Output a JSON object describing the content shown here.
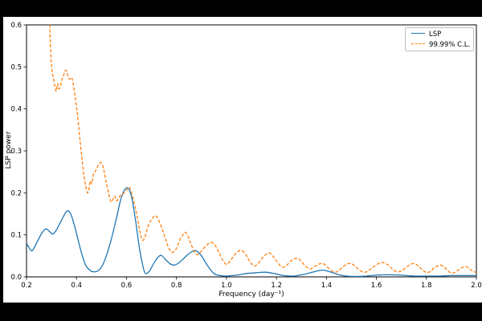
{
  "canvas": {
    "letterbox_color": "#000000",
    "figure_background": "#ffffff"
  },
  "chart_data": {
    "type": "line",
    "title": "",
    "xlabel": "Frequency (day⁻¹)",
    "ylabel": "LSP power",
    "xlim": [
      0.2,
      2.0
    ],
    "ylim": [
      0.0,
      0.6
    ],
    "xticks": [
      0.2,
      0.4,
      0.6,
      0.8,
      1.0,
      1.2,
      1.4,
      1.6,
      1.8,
      2.0
    ],
    "yticks": [
      0.0,
      0.1,
      0.2,
      0.3,
      0.4,
      0.5,
      0.6
    ],
    "grid": false,
    "legend": {
      "position": "upper right",
      "entries": [
        {
          "label": "LSP",
          "color": "#1f77b4",
          "line_style": "solid"
        },
        {
          "label": "99.99% C.L.",
          "color": "#ff7f0e",
          "line_style": "dashed"
        }
      ]
    },
    "series": [
      {
        "id": "lsp",
        "name": "LSP",
        "color": "#1f77b4",
        "line_style": "solid",
        "points": [
          [
            0.2,
            0.08
          ],
          [
            0.21,
            0.07
          ],
          [
            0.222,
            0.062
          ],
          [
            0.24,
            0.08
          ],
          [
            0.26,
            0.103
          ],
          [
            0.278,
            0.114
          ],
          [
            0.292,
            0.108
          ],
          [
            0.305,
            0.102
          ],
          [
            0.32,
            0.112
          ],
          [
            0.34,
            0.135
          ],
          [
            0.362,
            0.157
          ],
          [
            0.378,
            0.148
          ],
          [
            0.395,
            0.115
          ],
          [
            0.415,
            0.068
          ],
          [
            0.435,
            0.03
          ],
          [
            0.455,
            0.015
          ],
          [
            0.472,
            0.012
          ],
          [
            0.49,
            0.016
          ],
          [
            0.51,
            0.035
          ],
          [
            0.535,
            0.08
          ],
          [
            0.56,
            0.14
          ],
          [
            0.58,
            0.19
          ],
          [
            0.6,
            0.212
          ],
          [
            0.618,
            0.196
          ],
          [
            0.635,
            0.14
          ],
          [
            0.652,
            0.068
          ],
          [
            0.668,
            0.02
          ],
          [
            0.678,
            0.008
          ],
          [
            0.692,
            0.014
          ],
          [
            0.71,
            0.033
          ],
          [
            0.728,
            0.048
          ],
          [
            0.74,
            0.051
          ],
          [
            0.755,
            0.042
          ],
          [
            0.775,
            0.031
          ],
          [
            0.793,
            0.028
          ],
          [
            0.815,
            0.036
          ],
          [
            0.84,
            0.05
          ],
          [
            0.862,
            0.06
          ],
          [
            0.88,
            0.062
          ],
          [
            0.9,
            0.05
          ],
          [
            0.925,
            0.026
          ],
          [
            0.95,
            0.008
          ],
          [
            0.975,
            0.003
          ],
          [
            1.0,
            0.002
          ],
          [
            1.04,
            0.004
          ],
          [
            1.08,
            0.008
          ],
          [
            1.12,
            0.01
          ],
          [
            1.155,
            0.011
          ],
          [
            1.19,
            0.008
          ],
          [
            1.23,
            0.003
          ],
          [
            1.27,
            0.002
          ],
          [
            1.31,
            0.006
          ],
          [
            1.35,
            0.012
          ],
          [
            1.385,
            0.016
          ],
          [
            1.42,
            0.011
          ],
          [
            1.45,
            0.005
          ],
          [
            1.48,
            0.002
          ],
          [
            1.52,
            0.001
          ],
          [
            1.56,
            0.002
          ],
          [
            1.6,
            0.004
          ],
          [
            1.65,
            0.005
          ],
          [
            1.7,
            0.004
          ],
          [
            1.75,
            0.002
          ],
          [
            1.8,
            0.002
          ],
          [
            1.85,
            0.002
          ],
          [
            1.9,
            0.003
          ],
          [
            1.95,
            0.003
          ],
          [
            2.0,
            0.003
          ]
        ]
      },
      {
        "id": "confidence",
        "name": "99.99% C.L.",
        "color": "#ff7f0e",
        "line_style": "dashed",
        "points": [
          [
            0.288,
            0.72
          ],
          [
            0.293,
            0.6
          ],
          [
            0.298,
            0.52
          ],
          [
            0.303,
            0.487
          ],
          [
            0.307,
            0.476
          ],
          [
            0.313,
            0.455
          ],
          [
            0.319,
            0.442
          ],
          [
            0.324,
            0.46
          ],
          [
            0.329,
            0.448
          ],
          [
            0.335,
            0.452
          ],
          [
            0.342,
            0.47
          ],
          [
            0.35,
            0.483
          ],
          [
            0.358,
            0.492
          ],
          [
            0.366,
            0.478
          ],
          [
            0.372,
            0.47
          ],
          [
            0.377,
            0.474
          ],
          [
            0.383,
            0.471
          ],
          [
            0.392,
            0.44
          ],
          [
            0.403,
            0.39
          ],
          [
            0.415,
            0.32
          ],
          [
            0.428,
            0.25
          ],
          [
            0.44,
            0.207
          ],
          [
            0.447,
            0.202
          ],
          [
            0.455,
            0.228
          ],
          [
            0.461,
            0.222
          ],
          [
            0.468,
            0.244
          ],
          [
            0.476,
            0.252
          ],
          [
            0.484,
            0.262
          ],
          [
            0.492,
            0.27
          ],
          [
            0.499,
            0.272
          ],
          [
            0.508,
            0.258
          ],
          [
            0.52,
            0.222
          ],
          [
            0.532,
            0.19
          ],
          [
            0.54,
            0.178
          ],
          [
            0.548,
            0.188
          ],
          [
            0.554,
            0.192
          ],
          [
            0.56,
            0.181
          ],
          [
            0.568,
            0.186
          ],
          [
            0.578,
            0.196
          ],
          [
            0.588,
            0.198
          ],
          [
            0.597,
            0.205
          ],
          [
            0.605,
            0.21
          ],
          [
            0.613,
            0.213
          ],
          [
            0.62,
            0.2
          ],
          [
            0.63,
            0.178
          ],
          [
            0.642,
            0.145
          ],
          [
            0.655,
            0.105
          ],
          [
            0.665,
            0.087
          ],
          [
            0.675,
            0.098
          ],
          [
            0.69,
            0.126
          ],
          [
            0.705,
            0.14
          ],
          [
            0.716,
            0.146
          ],
          [
            0.728,
            0.136
          ],
          [
            0.742,
            0.115
          ],
          [
            0.755,
            0.092
          ],
          [
            0.77,
            0.068
          ],
          [
            0.785,
            0.058
          ],
          [
            0.8,
            0.068
          ],
          [
            0.815,
            0.09
          ],
          [
            0.828,
            0.102
          ],
          [
            0.836,
            0.106
          ],
          [
            0.845,
            0.098
          ],
          [
            0.858,
            0.078
          ],
          [
            0.872,
            0.06
          ],
          [
            0.885,
            0.053
          ],
          [
            0.898,
            0.06
          ],
          [
            0.915,
            0.072
          ],
          [
            0.93,
            0.08
          ],
          [
            0.942,
            0.082
          ],
          [
            0.955,
            0.075
          ],
          [
            0.97,
            0.058
          ],
          [
            0.985,
            0.04
          ],
          [
            1.0,
            0.03
          ],
          [
            1.015,
            0.038
          ],
          [
            1.032,
            0.052
          ],
          [
            1.048,
            0.061
          ],
          [
            1.06,
            0.063
          ],
          [
            1.075,
            0.055
          ],
          [
            1.09,
            0.04
          ],
          [
            1.105,
            0.028
          ],
          [
            1.115,
            0.026
          ],
          [
            1.13,
            0.034
          ],
          [
            1.148,
            0.048
          ],
          [
            1.162,
            0.055
          ],
          [
            1.172,
            0.057
          ],
          [
            1.185,
            0.05
          ],
          [
            1.2,
            0.038
          ],
          [
            1.215,
            0.027
          ],
          [
            1.228,
            0.023
          ],
          [
            1.242,
            0.028
          ],
          [
            1.258,
            0.038
          ],
          [
            1.272,
            0.043
          ],
          [
            1.285,
            0.044
          ],
          [
            1.298,
            0.038
          ],
          [
            1.312,
            0.028
          ],
          [
            1.325,
            0.021
          ],
          [
            1.336,
            0.019
          ],
          [
            1.35,
            0.024
          ],
          [
            1.365,
            0.029
          ],
          [
            1.38,
            0.032
          ],
          [
            1.392,
            0.03
          ],
          [
            1.405,
            0.023
          ],
          [
            1.42,
            0.015
          ],
          [
            1.435,
            0.011
          ],
          [
            1.448,
            0.014
          ],
          [
            1.462,
            0.022
          ],
          [
            1.478,
            0.029
          ],
          [
            1.492,
            0.032
          ],
          [
            1.505,
            0.03
          ],
          [
            1.52,
            0.023
          ],
          [
            1.535,
            0.015
          ],
          [
            1.55,
            0.011
          ],
          [
            1.565,
            0.013
          ],
          [
            1.58,
            0.02
          ],
          [
            1.598,
            0.028
          ],
          [
            1.615,
            0.033
          ],
          [
            1.63,
            0.034
          ],
          [
            1.645,
            0.029
          ],
          [
            1.66,
            0.021
          ],
          [
            1.675,
            0.014
          ],
          [
            1.69,
            0.012
          ],
          [
            1.705,
            0.016
          ],
          [
            1.722,
            0.024
          ],
          [
            1.738,
            0.03
          ],
          [
            1.75,
            0.032
          ],
          [
            1.763,
            0.028
          ],
          [
            1.778,
            0.02
          ],
          [
            1.792,
            0.013
          ],
          [
            1.805,
            0.01
          ],
          [
            1.818,
            0.014
          ],
          [
            1.832,
            0.022
          ],
          [
            1.845,
            0.026
          ],
          [
            1.857,
            0.028
          ],
          [
            1.87,
            0.024
          ],
          [
            1.885,
            0.015
          ],
          [
            1.9,
            0.009
          ],
          [
            1.912,
            0.01
          ],
          [
            1.925,
            0.015
          ],
          [
            1.94,
            0.021
          ],
          [
            1.952,
            0.024
          ],
          [
            1.962,
            0.024
          ],
          [
            1.975,
            0.018
          ],
          [
            1.988,
            0.013
          ],
          [
            2.0,
            0.011
          ]
        ]
      }
    ]
  }
}
